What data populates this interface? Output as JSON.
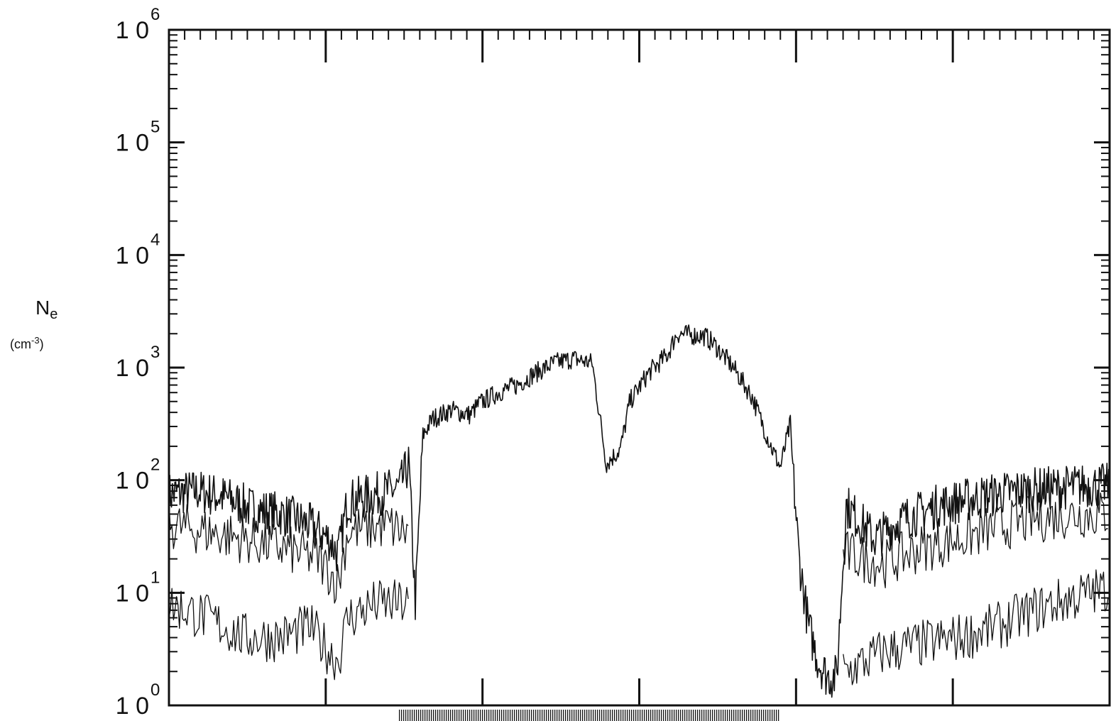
{
  "chart_data": {
    "type": "line",
    "title": "",
    "xlabel": "",
    "ylabel": "N",
    "ylabel_subscript": "e",
    "ylabel_units": "cm",
    "ylabel_units_exponent": "-3",
    "yscale": "log",
    "ylim": [
      1,
      1000000
    ],
    "y_ticks": [
      {
        "base": "10",
        "exp": "0"
      },
      {
        "base": "10",
        "exp": "1"
      },
      {
        "base": "10",
        "exp": "2"
      },
      {
        "base": "10",
        "exp": "3"
      },
      {
        "base": "10",
        "exp": "4"
      },
      {
        "base": "10",
        "exp": "5"
      },
      {
        "base": "10",
        "exp": "6"
      }
    ],
    "x_major_ticks": 6,
    "grid": false,
    "legend": "none",
    "line_color": "#111111",
    "series": [
      {
        "points": [
          [
            0.0,
            75
          ],
          [
            0.03,
            80
          ],
          [
            0.06,
            70
          ],
          [
            0.09,
            55
          ],
          [
            0.12,
            50
          ],
          [
            0.15,
            40
          ],
          [
            0.17,
            30
          ],
          [
            0.18,
            22
          ],
          [
            0.19,
            65
          ],
          [
            0.22,
            75
          ],
          [
            0.245,
            85
          ],
          [
            0.255,
            140
          ],
          [
            0.262,
            8
          ],
          [
            0.27,
            250
          ],
          [
            0.28,
            350
          ],
          [
            0.3,
            420
          ],
          [
            0.32,
            380
          ],
          [
            0.33,
            480
          ],
          [
            0.35,
            600
          ],
          [
            0.37,
            700
          ],
          [
            0.39,
            900
          ],
          [
            0.41,
            1100
          ],
          [
            0.43,
            1200
          ],
          [
            0.45,
            1100
          ],
          [
            0.465,
            140
          ],
          [
            0.48,
            190
          ],
          [
            0.49,
            500
          ],
          [
            0.51,
            900
          ],
          [
            0.53,
            1300
          ],
          [
            0.54,
            2000
          ],
          [
            0.57,
            1900
          ],
          [
            0.58,
            1600
          ],
          [
            0.6,
            1000
          ],
          [
            0.62,
            550
          ],
          [
            0.64,
            200
          ],
          [
            0.65,
            130
          ],
          [
            0.66,
            300
          ],
          [
            0.67,
            20
          ],
          [
            0.68,
            5
          ],
          [
            0.69,
            2.5
          ],
          [
            0.7,
            1.8
          ],
          [
            0.71,
            1.8
          ],
          [
            0.72,
            60
          ],
          [
            0.75,
            30
          ],
          [
            0.78,
            45
          ],
          [
            0.82,
            60
          ],
          [
            0.86,
            70
          ],
          [
            0.9,
            80
          ],
          [
            0.94,
            85
          ],
          [
            0.98,
            90
          ],
          [
            1.0,
            90
          ]
        ]
      },
      {
        "points": [
          [
            0.0,
            40
          ],
          [
            0.04,
            35
          ],
          [
            0.08,
            30
          ],
          [
            0.12,
            25
          ],
          [
            0.16,
            20
          ],
          [
            0.18,
            12
          ],
          [
            0.19,
            35
          ],
          [
            0.23,
            40
          ],
          [
            0.25,
            35
          ],
          [
            0.72,
            22
          ],
          [
            0.76,
            18
          ],
          [
            0.8,
            25
          ],
          [
            0.84,
            30
          ],
          [
            0.88,
            38
          ],
          [
            0.92,
            45
          ],
          [
            0.96,
            50
          ],
          [
            1.0,
            50
          ]
        ]
      },
      {
        "points": [
          [
            0.0,
            8
          ],
          [
            0.04,
            6
          ],
          [
            0.08,
            4
          ],
          [
            0.12,
            4
          ],
          [
            0.15,
            5
          ],
          [
            0.17,
            3
          ],
          [
            0.18,
            2.5
          ],
          [
            0.19,
            6
          ],
          [
            0.22,
            8
          ],
          [
            0.25,
            8
          ],
          [
            0.72,
            2
          ],
          [
            0.76,
            3
          ],
          [
            0.8,
            3.5
          ],
          [
            0.84,
            4
          ],
          [
            0.88,
            5
          ],
          [
            0.92,
            7
          ],
          [
            0.96,
            9
          ],
          [
            1.0,
            11
          ]
        ]
      }
    ]
  }
}
